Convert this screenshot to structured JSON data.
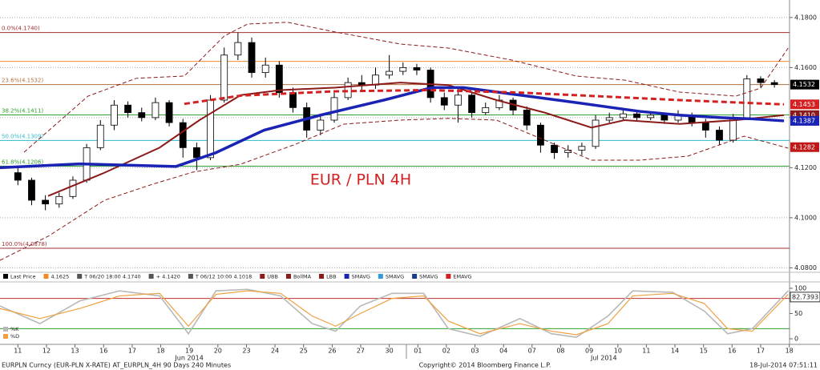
{
  "chart_data": {
    "type": "candlestick",
    "annotation": "EUR / PLN 4H",
    "xlim": [
      -1.3,
      56.1
    ],
    "xticks": [
      {
        "value": 0,
        "label": "11"
      },
      {
        "value": 2.08,
        "label": "12"
      },
      {
        "value": 4.15,
        "label": "13"
      },
      {
        "value": 6.23,
        "label": "16"
      },
      {
        "value": 8.31,
        "label": "17"
      },
      {
        "value": 10.38,
        "label": "18"
      },
      {
        "value": 12.46,
        "label": "19"
      },
      {
        "value": 14.54,
        "label": "20"
      },
      {
        "value": 16.62,
        "label": "23"
      },
      {
        "value": 18.69,
        "label": "24"
      },
      {
        "value": 20.77,
        "label": "25"
      },
      {
        "value": 22.85,
        "label": "26"
      },
      {
        "value": 24.92,
        "label": "27"
      },
      {
        "value": 27,
        "label": "30"
      },
      {
        "value": 29.08,
        "label": "01"
      },
      {
        "value": 31.15,
        "label": "02"
      },
      {
        "value": 33.23,
        "label": "03"
      },
      {
        "value": 35.31,
        "label": "04"
      },
      {
        "value": 37.38,
        "label": "07"
      },
      {
        "value": 39.46,
        "label": "08"
      },
      {
        "value": 41.54,
        "label": "09"
      },
      {
        "value": 43.62,
        "label": "10"
      },
      {
        "value": 45.69,
        "label": "11"
      },
      {
        "value": 47.77,
        "label": "14"
      },
      {
        "value": 49.85,
        "label": "15"
      },
      {
        "value": 51.92,
        "label": "16"
      },
      {
        "value": 54,
        "label": "17"
      },
      {
        "value": 56.08,
        "label": "18"
      }
    ],
    "month_labels": [
      {
        "value": 12.46,
        "label": "Jun 2014"
      },
      {
        "value": 42.6,
        "label": "Jul 2014"
      }
    ],
    "ylim": [
      4.0782,
      4.187
    ],
    "yticks": [
      {
        "value": 4.08,
        "label": "4.0800"
      },
      {
        "value": 4.1,
        "label": "4.1000"
      },
      {
        "value": 4.12,
        "label": "4.1200"
      },
      {
        "value": 4.14,
        "label": "4.1400"
      },
      {
        "value": 4.16,
        "label": "4.1600"
      },
      {
        "value": 4.18,
        "label": "4.1800"
      }
    ],
    "grid": true,
    "candles": {
      "x": [
        0,
        1,
        2,
        3,
        4,
        5,
        6,
        7,
        8,
        9,
        10,
        11,
        12,
        13,
        14,
        15,
        16,
        17,
        18,
        19,
        20,
        21,
        22,
        23,
        24,
        25,
        26,
        27,
        28,
        29,
        30,
        31,
        32,
        33,
        34,
        35,
        36,
        37,
        38,
        39,
        40,
        41,
        42,
        43,
        44,
        45,
        46,
        47,
        48,
        49,
        50,
        51,
        52,
        53,
        54,
        55
      ],
      "open": [
        4.118,
        4.115,
        4.107,
        4.1055,
        4.1085,
        4.115,
        4.128,
        4.137,
        4.145,
        4.142,
        4.14,
        4.146,
        4.138,
        4.128,
        4.124,
        4.147,
        4.165,
        4.17,
        4.158,
        4.161,
        4.15,
        4.144,
        4.135,
        4.139,
        4.148,
        4.154,
        4.153,
        4.157,
        4.1585,
        4.16,
        4.159,
        4.148,
        4.145,
        4.149,
        4.142,
        4.144,
        4.147,
        4.143,
        4.137,
        4.129,
        4.126,
        4.127,
        4.1285,
        4.139,
        4.14,
        4.1415,
        4.14,
        4.141,
        4.139,
        4.141,
        4.138,
        4.135,
        4.131,
        4.14,
        4.1555,
        4.154
      ],
      "high": [
        4.12,
        4.116,
        4.109,
        4.11,
        4.1165,
        4.1295,
        4.139,
        4.147,
        4.1465,
        4.144,
        4.148,
        4.147,
        4.1395,
        4.13,
        4.149,
        4.168,
        4.174,
        4.172,
        4.164,
        4.1625,
        4.152,
        4.146,
        4.141,
        4.15,
        4.156,
        4.157,
        4.16,
        4.165,
        4.162,
        4.1615,
        4.16,
        4.15,
        4.152,
        4.15,
        4.146,
        4.149,
        4.148,
        4.1445,
        4.138,
        4.13,
        4.129,
        4.13,
        4.141,
        4.142,
        4.143,
        4.1425,
        4.1425,
        4.142,
        4.143,
        4.142,
        4.1395,
        4.1365,
        4.1415,
        4.157,
        4.1565,
        4.155
      ],
      "low": [
        4.113,
        4.105,
        4.103,
        4.104,
        4.1075,
        4.114,
        4.127,
        4.135,
        4.14,
        4.1385,
        4.139,
        4.1365,
        4.124,
        4.119,
        4.123,
        4.146,
        4.163,
        4.156,
        4.156,
        4.148,
        4.142,
        4.132,
        4.133,
        4.138,
        4.147,
        4.151,
        4.1515,
        4.1555,
        4.157,
        4.157,
        4.146,
        4.143,
        4.138,
        4.14,
        4.141,
        4.143,
        4.141,
        4.135,
        4.126,
        4.1235,
        4.124,
        4.125,
        4.1275,
        4.138,
        4.139,
        4.139,
        4.139,
        4.1375,
        4.138,
        4.1365,
        4.132,
        4.129,
        4.13,
        4.139,
        4.152,
        4.152
      ],
      "close": [
        4.115,
        4.107,
        4.1055,
        4.1085,
        4.115,
        4.128,
        4.137,
        4.145,
        4.142,
        4.14,
        4.146,
        4.138,
        4.128,
        4.124,
        4.147,
        4.165,
        4.17,
        4.158,
        4.161,
        4.15,
        4.144,
        4.135,
        4.139,
        4.148,
        4.154,
        4.153,
        4.157,
        4.1585,
        4.16,
        4.159,
        4.148,
        4.145,
        4.149,
        4.142,
        4.144,
        4.147,
        4.143,
        4.137,
        4.129,
        4.126,
        4.127,
        4.1285,
        4.139,
        4.14,
        4.1415,
        4.14,
        4.141,
        4.139,
        4.141,
        4.138,
        4.135,
        4.131,
        4.14,
        4.1555,
        4.154,
        4.1532
      ],
      "up_color": "#ffffff",
      "down_color": "#000000"
    },
    "series": [
      {
        "color": "#8b1a1a",
        "width": 1,
        "dash": true,
        "x": [
          0.45,
          5.1,
          8.6,
          12.1,
          15,
          16.7,
          19.6,
          23.1,
          27.8,
          31.3,
          35.9,
          40.6,
          44.1,
          48.1,
          52.2,
          54,
          56
        ],
        "values": [
          4.1262,
          4.1486,
          4.1557,
          4.1566,
          4.1726,
          4.1774,
          4.1781,
          4.1742,
          4.1694,
          4.1678,
          4.163,
          4.1566,
          4.155,
          4.1502,
          4.1486,
          4.1518,
          4.1678
        ]
      },
      {
        "color": "#8b1a1a",
        "width": 1,
        "dash": true,
        "x": [
          -1.3,
          2.2,
          6.3,
          9.8,
          12.7,
          16.2,
          20.2,
          23.7,
          27.8,
          31.3,
          34.8,
          38.3,
          41.7,
          45.2,
          48.7,
          52.8,
          56
        ],
        "values": [
          4.083,
          4.0926,
          4.107,
          4.1134,
          4.1182,
          4.1214,
          4.1294,
          4.1374,
          4.139,
          4.1397,
          4.139,
          4.131,
          4.123,
          4.123,
          4.1246,
          4.1326,
          4.1278
        ]
      },
      {
        "color": "#8b1a1a",
        "width": 2,
        "dash": false,
        "x": [
          2.2,
          6.3,
          10.3,
          13.2,
          16.2,
          19.1,
          23.1,
          27.8,
          31.3,
          34.8,
          38.3,
          41.7,
          44.1,
          48.1,
          52.2,
          55.7
        ],
        "values": [
          4.1087,
          4.118,
          4.128,
          4.139,
          4.149,
          4.151,
          4.152,
          4.154,
          4.153,
          4.147,
          4.142,
          4.136,
          4.139,
          4.1375,
          4.139,
          4.141
        ]
      },
      {
        "color": "#1a23b4",
        "width": 3.5,
        "dash": false,
        "x": [
          -1.3,
          4.5,
          11.5,
          14.4,
          17.9,
          22,
          26.6,
          30.1,
          32.4,
          36.5,
          40.6,
          45.2,
          48.1,
          51.1,
          53.4,
          55.7
        ],
        "values": [
          4.12,
          4.1215,
          4.1205,
          4.126,
          4.135,
          4.141,
          4.147,
          4.152,
          4.152,
          4.149,
          4.146,
          4.1425,
          4.141,
          4.14,
          4.1395,
          4.1387
        ]
      },
      {
        "color": "#d42020",
        "width": 3,
        "dash": true,
        "x": [
          12.1,
          16.2,
          23,
          29.8,
          36.5,
          42.4,
          48.1,
          53.4,
          55.7
        ],
        "values": [
          4.1455,
          4.1488,
          4.1505,
          4.151,
          4.15,
          4.1485,
          4.147,
          4.1458,
          4.1453
        ]
      }
    ],
    "fib_levels": [
      {
        "value": 4.174,
        "label": "0.0%(4.1740)",
        "color": "#a03030"
      },
      {
        "value": 4.1532,
        "label": "23.6%(4.1532)",
        "color": "#b07040"
      },
      {
        "value": 4.1411,
        "label": "38.2%(4.1411)",
        "color": "#30a030"
      },
      {
        "value": 4.1309,
        "label": "50.0%(4.1309)",
        "color": "#30b8c8"
      },
      {
        "value": 4.1206,
        "label": "61.8%(4.1206)",
        "color": "#30a030"
      },
      {
        "value": 4.0878,
        "label": "100.0%(4.0878)",
        "color": "#a03030"
      }
    ],
    "hlines": [
      {
        "value": 4.1625,
        "color": "#f08c28"
      }
    ],
    "price_tags": [
      {
        "value": 4.1532,
        "label": "4.1532",
        "color": "#000000"
      },
      {
        "value": 4.1453,
        "label": "4.1453",
        "color": "#d42020"
      },
      {
        "value": 4.141,
        "label": "4.1410",
        "color": "#8b1a1a"
      },
      {
        "value": 4.1387,
        "label": "4.1387",
        "color": "#1a23b4"
      },
      {
        "value": 4.1282,
        "label": "4.1282",
        "color": "#c01818"
      }
    ],
    "legend": [
      {
        "label": "Last Price",
        "color": "#000000"
      },
      {
        "label": "4.1625",
        "color": "#f08c28"
      },
      {
        "label": "T 06/20 18:00 4.1740",
        "color": "#555555"
      },
      {
        "label": "+ 4.1420",
        "color": "#555555"
      },
      {
        "label": "T 06/12 10:00 4.1018",
        "color": "#555555"
      },
      {
        "label": "UBB",
        "color": "#8b1a1a"
      },
      {
        "label": "BollMA",
        "color": "#8b1a1a"
      },
      {
        "label": "LBB",
        "color": "#8b1a1a"
      },
      {
        "label": "SMAVG",
        "color": "#1a23b4"
      },
      {
        "label": "SMAVG",
        "color": "#3399dd"
      },
      {
        "label": "SMAVG",
        "color": "#1a3c8c"
      },
      {
        "label": "EMAVG",
        "color": "#d42020"
      }
    ],
    "stochastic": {
      "ylim": [
        0,
        100
      ],
      "yticks": [
        0,
        50,
        100
      ],
      "levels": [
        {
          "value": 80,
          "color": "#c03030"
        },
        {
          "value": 20,
          "color": "#30a030"
        }
      ],
      "last": {
        "value": 82.7393,
        "label": "82.7393"
      },
      "x": [
        -1.3,
        1.6,
        4.5,
        7.4,
        10.3,
        12.4,
        14.4,
        16.7,
        19.1,
        21.4,
        23.1,
        24.9,
        27.2,
        29.5,
        31.3,
        33.6,
        36.5,
        38.8,
        40.6,
        42.9,
        44.7,
        47.6,
        49.9,
        51.6,
        53.4,
        56
      ],
      "series": [
        {
          "name": "%K",
          "color": "#b8b8b8",
          "values": [
            65,
            30,
            75,
            95,
            85,
            10,
            95,
            98,
            85,
            30,
            15,
            65,
            90,
            90,
            20,
            5,
            40,
            10,
            3,
            45,
            95,
            92,
            55,
            10,
            20,
            95
          ]
        },
        {
          "name": "%D",
          "color": "#f0a040",
          "values": [
            60,
            40,
            60,
            85,
            90,
            25,
            88,
            95,
            90,
            45,
            25,
            50,
            80,
            85,
            35,
            10,
            30,
            15,
            8,
            30,
            85,
            90,
            70,
            20,
            15,
            88
          ]
        }
      ]
    },
    "footer": {
      "left": "EURPLN Curncy (EUR-PLN X-RATE) AT_EURPLN_4H 90 Days 240 Minutes",
      "center": "Copyright© 2014 Bloomberg Finance L.P.",
      "right": "18-Jul-2014 07:51:11"
    }
  }
}
